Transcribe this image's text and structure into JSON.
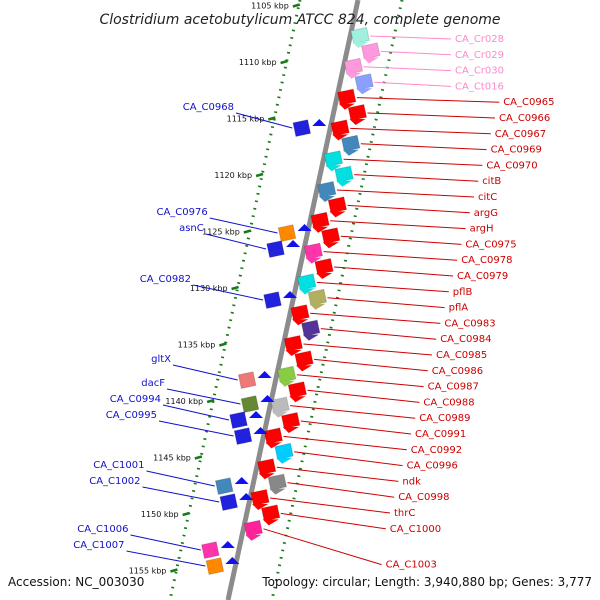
{
  "title": "Clostridium acetobutylicum ATCC 824, complete genome",
  "footer": {
    "accession": "Accession: NC_003030",
    "topology": "Topology: circular; Length: 3,940,880 bp; Genes: 3,777"
  },
  "colors": {
    "backbone": "#8c8c8c",
    "tick": "#1a7a1a",
    "forward_label": "#cc0000",
    "reverse_label": "#1010cc",
    "pink_label": "#ff88cc"
  },
  "scale_labels": [
    {
      "kbp": 1105,
      "text": "1105 kbp"
    },
    {
      "kbp": 1110,
      "text": "1110 kbp"
    },
    {
      "kbp": 1115,
      "text": "1115 kbp"
    },
    {
      "kbp": 1120,
      "text": "1120 kbp"
    },
    {
      "kbp": 1125,
      "text": "1125 kbp"
    },
    {
      "kbp": 1130,
      "text": "1130 kbp"
    },
    {
      "kbp": 1135,
      "text": "1135 kbp"
    },
    {
      "kbp": 1140,
      "text": "1140 kbp"
    },
    {
      "kbp": 1145,
      "text": "1145 kbp"
    },
    {
      "kbp": 1150,
      "text": "1150 kbp"
    },
    {
      "kbp": 1155,
      "text": "1155 kbp"
    }
  ],
  "forward_genes": [
    "CA_Cr028",
    "CA_Cr029",
    "CA_Cr030",
    "CA_Ct016",
    "CA_C0965",
    "CA_C0966",
    "CA_C0967",
    "CA_C0969",
    "CA_C0970",
    "citB",
    "citC",
    "argG",
    "argH",
    "CA_C0975",
    "CA_C0978",
    "CA_C0979",
    "pflB",
    "pflA",
    "CA_C0983",
    "CA_C0984",
    "CA_C0985",
    "CA_C0986",
    "CA_C0987",
    "CA_C0988",
    "CA_C0989",
    "CA_C0991",
    "CA_C0992",
    "CA_C0996",
    "ndk",
    "CA_C0998",
    "thrC",
    "CA_C1000",
    "CA_C1003"
  ],
  "reverse_genes": [
    "CA_C0968",
    "CA_C0976",
    "asnC",
    "CA_C0982",
    "gltX",
    "dacF",
    "CA_C0994",
    "CA_C0995",
    "CA_C1001",
    "CA_C1002",
    "CA_C1006",
    "CA_C1007"
  ]
}
